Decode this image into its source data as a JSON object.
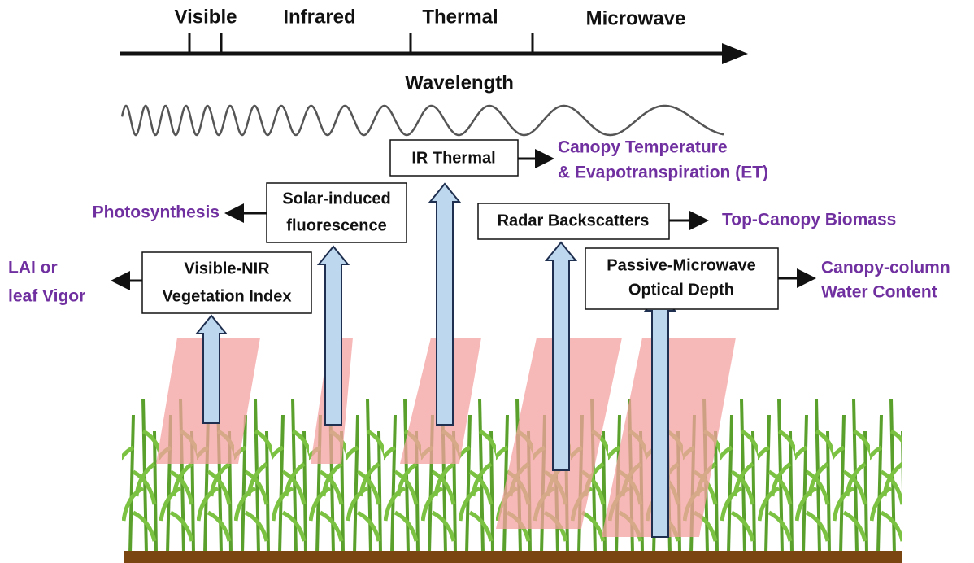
{
  "spectrum": {
    "bands": [
      "Visible",
      "Infrared",
      "Thermal",
      "Microwave"
    ],
    "axis_label": "Wavelength"
  },
  "nodes": [
    {
      "label": [
        "Visible-NIR",
        "Vegetation Index"
      ],
      "outcome": [
        "LAI or",
        "leaf Vigor"
      ]
    },
    {
      "label": [
        "Solar-induced",
        "fluorescence"
      ],
      "outcome": [
        "Photosynthesis"
      ]
    },
    {
      "label": [
        "IR Thermal"
      ],
      "outcome": [
        "Canopy Temperature",
        "& Evapotranspiration (ET)"
      ]
    },
    {
      "label": [
        "Radar Backscatters"
      ],
      "outcome": [
        "Top-Canopy Biomass"
      ]
    },
    {
      "label": [
        "Passive-Microwave",
        "Optical Depth"
      ],
      "outcome": [
        "Canopy-column",
        "Water Content"
      ]
    }
  ]
}
